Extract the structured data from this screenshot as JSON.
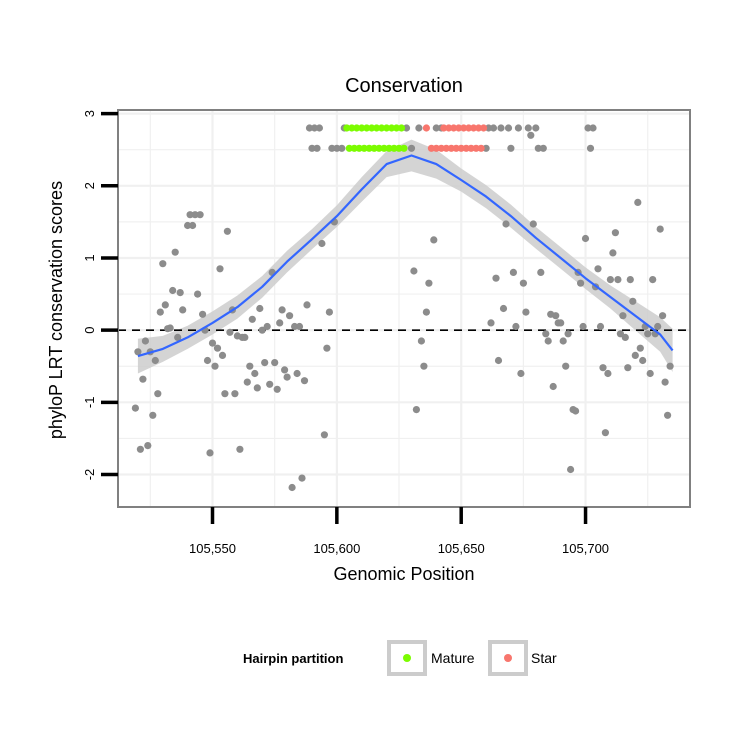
{
  "chart_data": {
    "type": "scatter",
    "title": "Conservation",
    "xlabel": "Genomic Position",
    "ylabel": "phyloP LRT conservation scores",
    "xlim": [
      105512,
      105742
    ],
    "ylim": [
      -2.45,
      3.05
    ],
    "x_ticks": [
      105550,
      105600,
      105650,
      105700
    ],
    "x_tick_labels": [
      "105,550",
      "105,600",
      "105,650",
      "105,700"
    ],
    "y_ticks": [
      -2,
      -1,
      0,
      1,
      2,
      3
    ],
    "y_tick_labels": [
      "-2",
      "-1",
      "0",
      "1",
      "2",
      "3"
    ],
    "grid": true,
    "reference_line": {
      "y": 0,
      "style": "dashed"
    },
    "legend": {
      "title": "Hairpin partition",
      "position": "bottom",
      "entries": [
        {
          "label": "Mature",
          "color": "#7cfc00"
        },
        {
          "label": "Star",
          "color": "#f8766d"
        }
      ]
    },
    "colors": {
      "other": "#8c8c8c",
      "mature": "#7cfc00",
      "star": "#f8766d",
      "smooth": "#3366ff",
      "band": "#cccccc"
    },
    "series": [
      {
        "name": "Other",
        "points": [
          [
            105519,
            -1.08
          ],
          [
            105520,
            -0.3
          ],
          [
            105521,
            -1.65
          ],
          [
            105522,
            -0.68
          ],
          [
            105523,
            -0.15
          ],
          [
            105524,
            -1.6
          ],
          [
            105525,
            -0.3
          ],
          [
            105526,
            -1.18
          ],
          [
            105527,
            -0.42
          ],
          [
            105528,
            -0.88
          ],
          [
            105529,
            0.25
          ],
          [
            105530,
            0.92
          ],
          [
            105531,
            0.35
          ],
          [
            105532,
            0.02
          ],
          [
            105533,
            0.03
          ],
          [
            105534,
            0.55
          ],
          [
            105535,
            1.08
          ],
          [
            105536,
            -0.1
          ],
          [
            105537,
            0.52
          ],
          [
            105538,
            0.28
          ],
          [
            105540,
            1.45
          ],
          [
            105541,
            1.6
          ],
          [
            105542,
            1.45
          ],
          [
            105543,
            1.6
          ],
          [
            105544,
            0.5
          ],
          [
            105545,
            1.6
          ],
          [
            105546,
            0.22
          ],
          [
            105547,
            0.0
          ],
          [
            105548,
            -0.42
          ],
          [
            105549,
            -1.7
          ],
          [
            105550,
            -0.18
          ],
          [
            105551,
            -0.5
          ],
          [
            105552,
            -0.25
          ],
          [
            105553,
            0.85
          ],
          [
            105554,
            -0.35
          ],
          [
            105555,
            -0.88
          ],
          [
            105556,
            1.37
          ],
          [
            105557,
            -0.03
          ],
          [
            105558,
            0.28
          ],
          [
            105559,
            -0.88
          ],
          [
            105560,
            -0.08
          ],
          [
            105561,
            -1.65
          ],
          [
            105562,
            -0.1
          ],
          [
            105563,
            -0.1
          ],
          [
            105564,
            -0.72
          ],
          [
            105565,
            -0.5
          ],
          [
            105566,
            0.15
          ],
          [
            105567,
            -0.6
          ],
          [
            105568,
            -0.8
          ],
          [
            105569,
            0.3
          ],
          [
            105570,
            0.0
          ],
          [
            105571,
            -0.45
          ],
          [
            105572,
            0.05
          ],
          [
            105573,
            -0.75
          ],
          [
            105574,
            0.8
          ],
          [
            105575,
            -0.45
          ],
          [
            105576,
            -0.82
          ],
          [
            105577,
            0.1
          ],
          [
            105578,
            0.28
          ],
          [
            105579,
            -0.55
          ],
          [
            105580,
            -0.65
          ],
          [
            105581,
            0.2
          ],
          [
            105582,
            -2.18
          ],
          [
            105583,
            0.05
          ],
          [
            105584,
            -0.6
          ],
          [
            105585,
            0.05
          ],
          [
            105586,
            -2.05
          ],
          [
            105587,
            -0.7
          ],
          [
            105588,
            0.35
          ],
          [
            105589,
            2.8
          ],
          [
            105590,
            2.52
          ],
          [
            105591,
            2.8
          ],
          [
            105592,
            2.52
          ],
          [
            105593,
            2.8
          ],
          [
            105594,
            1.2
          ],
          [
            105595,
            -1.45
          ],
          [
            105596,
            -0.25
          ],
          [
            105597,
            0.25
          ],
          [
            105598,
            2.52
          ],
          [
            105599,
            1.5
          ],
          [
            105600,
            2.52
          ],
          [
            105602,
            2.52
          ],
          [
            105603,
            2.8
          ],
          [
            105628,
            2.8
          ],
          [
            105630,
            2.52
          ],
          [
            105631,
            0.82
          ],
          [
            105632,
            -1.1
          ],
          [
            105633,
            2.8
          ],
          [
            105634,
            -0.15
          ],
          [
            105635,
            -0.5
          ],
          [
            105636,
            0.25
          ],
          [
            105637,
            0.65
          ],
          [
            105639,
            1.25
          ],
          [
            105640,
            2.8
          ],
          [
            105642,
            2.8
          ],
          [
            105660,
            2.52
          ],
          [
            105661,
            2.8
          ],
          [
            105662,
            0.1
          ],
          [
            105663,
            2.8
          ],
          [
            105664,
            0.72
          ],
          [
            105665,
            -0.42
          ],
          [
            105666,
            2.8
          ],
          [
            105667,
            0.3
          ],
          [
            105668,
            1.47
          ],
          [
            105669,
            2.8
          ],
          [
            105670,
            2.52
          ],
          [
            105671,
            0.8
          ],
          [
            105672,
            0.05
          ],
          [
            105673,
            2.8
          ],
          [
            105674,
            -0.6
          ],
          [
            105675,
            0.65
          ],
          [
            105676,
            0.25
          ],
          [
            105677,
            2.8
          ],
          [
            105678,
            2.7
          ],
          [
            105679,
            1.47
          ],
          [
            105680,
            2.8
          ],
          [
            105681,
            2.52
          ],
          [
            105682,
            0.8
          ],
          [
            105683,
            2.52
          ],
          [
            105684,
            -0.05
          ],
          [
            105685,
            -0.15
          ],
          [
            105686,
            0.22
          ],
          [
            105687,
            -0.78
          ],
          [
            105688,
            0.2
          ],
          [
            105689,
            0.1
          ],
          [
            105690,
            0.1
          ],
          [
            105691,
            -0.15
          ],
          [
            105692,
            -0.5
          ],
          [
            105693,
            -0.05
          ],
          [
            105694,
            -1.93
          ],
          [
            105695,
            -1.1
          ],
          [
            105696,
            -1.12
          ],
          [
            105697,
            0.8
          ],
          [
            105698,
            0.65
          ],
          [
            105699,
            0.05
          ],
          [
            105700,
            1.27
          ],
          [
            105701,
            2.8
          ],
          [
            105702,
            2.52
          ],
          [
            105703,
            2.8
          ],
          [
            105704,
            0.6
          ],
          [
            105705,
            0.85
          ],
          [
            105706,
            0.05
          ],
          [
            105707,
            -0.52
          ],
          [
            105708,
            -1.42
          ],
          [
            105709,
            -0.6
          ],
          [
            105710,
            0.7
          ],
          [
            105711,
            1.07
          ],
          [
            105712,
            1.35
          ],
          [
            105713,
            0.7
          ],
          [
            105714,
            -0.05
          ],
          [
            105715,
            0.2
          ],
          [
            105716,
            -0.1
          ],
          [
            105717,
            -0.52
          ],
          [
            105718,
            0.7
          ],
          [
            105719,
            0.4
          ],
          [
            105720,
            -0.35
          ],
          [
            105721,
            1.77
          ],
          [
            105722,
            -0.25
          ],
          [
            105723,
            -0.42
          ],
          [
            105724,
            0.05
          ],
          [
            105725,
            -0.05
          ],
          [
            105726,
            -0.6
          ],
          [
            105727,
            0.7
          ],
          [
            105728,
            -0.05
          ],
          [
            105729,
            0.05
          ],
          [
            105730,
            1.4
          ],
          [
            105731,
            0.2
          ],
          [
            105732,
            -0.72
          ],
          [
            105733,
            -1.18
          ],
          [
            105734,
            -0.5
          ]
        ]
      },
      {
        "name": "Mature",
        "points": [
          [
            105604,
            2.8
          ],
          [
            105605,
            2.52
          ],
          [
            105606,
            2.8
          ],
          [
            105607,
            2.52
          ],
          [
            105608,
            2.8
          ],
          [
            105609,
            2.52
          ],
          [
            105610,
            2.8
          ],
          [
            105611,
            2.52
          ],
          [
            105612,
            2.8
          ],
          [
            105613,
            2.52
          ],
          [
            105614,
            2.8
          ],
          [
            105615,
            2.52
          ],
          [
            105616,
            2.8
          ],
          [
            105617,
            2.52
          ],
          [
            105618,
            2.8
          ],
          [
            105619,
            2.52
          ],
          [
            105620,
            2.8
          ],
          [
            105621,
            2.52
          ],
          [
            105622,
            2.8
          ],
          [
            105623,
            2.52
          ],
          [
            105624,
            2.8
          ],
          [
            105625,
            2.52
          ],
          [
            105626,
            2.8
          ],
          [
            105627,
            2.52
          ]
        ]
      },
      {
        "name": "Star",
        "points": [
          [
            105636,
            2.8
          ],
          [
            105638,
            2.52
          ],
          [
            105640,
            2.52
          ],
          [
            105642,
            2.52
          ],
          [
            105643,
            2.8
          ],
          [
            105644,
            2.52
          ],
          [
            105645,
            2.8
          ],
          [
            105646,
            2.52
          ],
          [
            105647,
            2.8
          ],
          [
            105648,
            2.52
          ],
          [
            105649,
            2.8
          ],
          [
            105650,
            2.52
          ],
          [
            105651,
            2.8
          ],
          [
            105652,
            2.52
          ],
          [
            105653,
            2.8
          ],
          [
            105654,
            2.52
          ],
          [
            105655,
            2.8
          ],
          [
            105656,
            2.52
          ],
          [
            105657,
            2.8
          ],
          [
            105658,
            2.52
          ],
          [
            105659,
            2.8
          ]
        ]
      }
    ],
    "smooth": {
      "x": [
        105520,
        105530,
        105540,
        105550,
        105560,
        105570,
        105580,
        105590,
        105600,
        105610,
        105620,
        105630,
        105640,
        105650,
        105660,
        105670,
        105680,
        105690,
        105700,
        105710,
        105720,
        105730,
        105735
      ],
      "y": [
        -0.36,
        -0.26,
        -0.1,
        0.1,
        0.32,
        0.6,
        0.95,
        1.26,
        1.58,
        1.95,
        2.3,
        2.42,
        2.3,
        2.08,
        1.85,
        1.58,
        1.28,
        1.0,
        0.72,
        0.46,
        0.2,
        -0.06,
        -0.28
      ],
      "lower": [
        -0.6,
        -0.44,
        -0.26,
        -0.06,
        0.16,
        0.45,
        0.8,
        1.12,
        1.43,
        1.78,
        2.12,
        2.2,
        2.1,
        1.92,
        1.69,
        1.42,
        1.13,
        0.85,
        0.57,
        0.3,
        0.0,
        -0.3,
        -0.58
      ],
      "upper": [
        -0.12,
        -0.08,
        0.06,
        0.26,
        0.48,
        0.75,
        1.1,
        1.4,
        1.73,
        2.12,
        2.48,
        2.64,
        2.5,
        2.24,
        2.01,
        1.74,
        1.43,
        1.15,
        0.87,
        0.62,
        0.4,
        0.18,
        0.02
      ]
    }
  }
}
